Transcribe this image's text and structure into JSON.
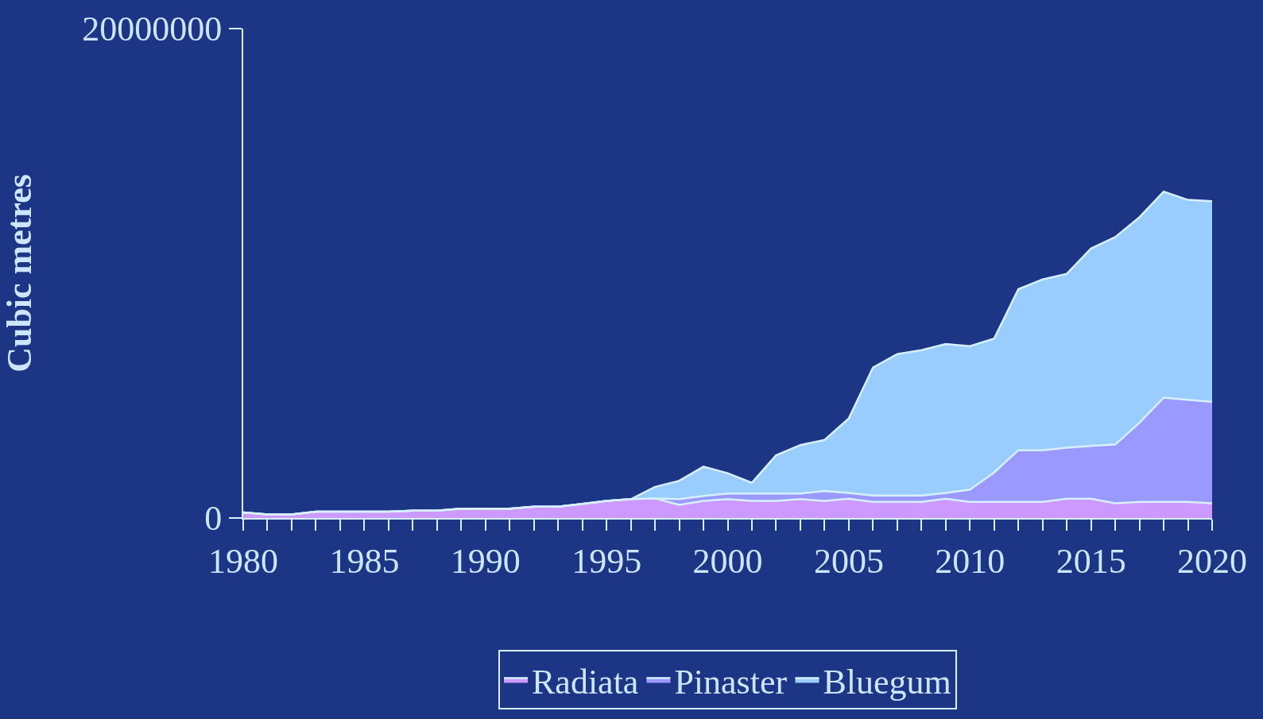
{
  "chart_data": {
    "type": "area",
    "stacked": true,
    "ylabel": "Cubic metres",
    "x": [
      1980,
      1981,
      1982,
      1983,
      1984,
      1985,
      1986,
      1987,
      1988,
      1989,
      1990,
      1991,
      1992,
      1993,
      1994,
      1995,
      1996,
      1997,
      1998,
      1999,
      2000,
      2001,
      2002,
      2003,
      2004,
      2005,
      2006,
      2007,
      2008,
      2009,
      2010,
      2011,
      2012,
      2013,
      2014,
      2015,
      2016,
      2017,
      2018,
      2019,
      2020
    ],
    "series": [
      {
        "name": "Radiata",
        "color": "#cc99ff",
        "values": [
          230000,
          150000,
          150000,
          260000,
          260000,
          260000,
          260000,
          300000,
          300000,
          380000,
          380000,
          380000,
          460000,
          460000,
          580000,
          700000,
          770000,
          800000,
          540000,
          700000,
          770000,
          700000,
          700000,
          770000,
          700000,
          790000,
          660000,
          660000,
          660000,
          790000,
          660000,
          660000,
          660000,
          660000,
          790000,
          790000,
          600000,
          660000,
          660000,
          660000,
          600000
        ]
      },
      {
        "name": "Pinaster",
        "color": "#9999ff",
        "values": [
          0,
          0,
          0,
          0,
          0,
          0,
          0,
          0,
          0,
          0,
          0,
          0,
          0,
          0,
          0,
          0,
          0,
          0,
          230000,
          200000,
          230000,
          300000,
          300000,
          230000,
          400000,
          230000,
          260000,
          260000,
          260000,
          230000,
          500000,
          1200000,
          2110000,
          2110000,
          2080000,
          2160000,
          2400000,
          3230000,
          4260000,
          4170000,
          4150000
        ]
      },
      {
        "name": "Bluegum",
        "color": "#99ccff",
        "values": [
          0,
          0,
          0,
          0,
          0,
          0,
          0,
          0,
          0,
          0,
          0,
          0,
          0,
          0,
          0,
          0,
          0,
          470000,
          750000,
          1200000,
          830000,
          440000,
          1560000,
          1980000,
          2090000,
          3050000,
          5230000,
          5780000,
          5940000,
          6090000,
          5860000,
          5470000,
          6580000,
          6980000,
          7110000,
          8060000,
          8480000,
          8400000,
          8420000,
          8170000,
          8200000
        ]
      }
    ],
    "xlim": [
      1980,
      2020
    ],
    "xticks": [
      1980,
      1985,
      1990,
      1995,
      2000,
      2005,
      2010,
      2015,
      2020
    ],
    "ylim": [
      0,
      20000000
    ],
    "yticks": [
      0,
      20000000
    ],
    "grid": false,
    "legend": "bottom"
  }
}
